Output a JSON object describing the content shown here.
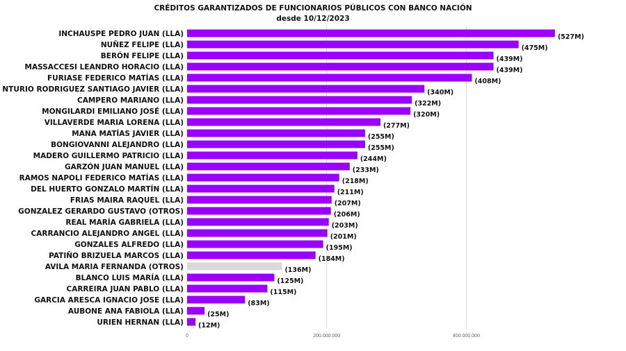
{
  "chart_data": {
    "type": "bar",
    "orientation": "horizontal",
    "title": "CRÉDITOS GARANTIZADOS DE FUNCIONARIOS PÚBLICOS CON BANCO NACIÓN",
    "subtitle": "desde 10/12/2023",
    "xlim": [
      0,
      580000000
    ],
    "xticks": [
      0,
      200000000,
      400000000
    ],
    "xtick_labels": [
      "0",
      "200.000.000",
      "400.000.000"
    ],
    "grid": "vertical",
    "legend": "none",
    "colors": {
      "default": "#9a00ff",
      "highlight": "#d9d9d9",
      "grid": "#d8d8d8"
    },
    "categories": [
      "INCHAUSPE PEDRO JUAN (LLA)",
      "NUÑEZ FELIPE (LLA)",
      "BERÓN FELIPE (LLA)",
      "MASSACCESI LEANDRO HORACIO (LLA)",
      "FURIASE FEDERICO MATÍAS (LLA)",
      "NTURIO RODRIGUEZ SANTIAGO JAVIER (LLA)",
      "CAMPERO MARIANO (LLA)",
      "MONGILARDI EMILIANO JOSÉ (LLA)",
      "VILLAVERDE MARIA LORENA (LLA)",
      "MANA MATÍAS JAVIER (LLA)",
      "BONGIOVANNI ALEJANDRO (LLA)",
      "MADERO GUILLERMO PATRICIO (LLA)",
      "GARZÓN JUAN MANUEL (LLA)",
      "RAMOS NAPOLI FEDERICO MATÍAS (LLA)",
      "DEL HUERTO GONZALO MARTÍN (LLA)",
      "FRIAS MAIRA RAQUEL (LLA)",
      "GONZALEZ GERARDO GUSTAVO (OTROS)",
      "REAL MARÍA GABRIELA (LLA)",
      "CARRANCIO ALEJANDRO ANGEL (LLA)",
      "GONZALES ALFREDO (LLA)",
      "PATIÑO BRIZUELA MARCOS (LLA)",
      "AVILA MARIA FERNANDA (OTROS)",
      "BLANCO LUIS MARÍA  (LLA)",
      "CARREIRA JUAN PABLO (LLA)",
      "GARCIA ARESCA IGNACIO JOSE (LLA)",
      "AUBONE ANA FABIOLA (LLA)",
      "URIEN HERNAN (LLA)"
    ],
    "values": [
      527000000,
      475000000,
      439000000,
      439000000,
      408000000,
      340000000,
      322000000,
      320000000,
      277000000,
      255000000,
      255000000,
      244000000,
      233000000,
      218000000,
      211000000,
      207000000,
      206000000,
      203000000,
      201000000,
      195000000,
      184000000,
      136000000,
      125000000,
      115000000,
      83000000,
      25000000,
      12000000
    ],
    "value_labels": [
      "(527M)",
      "(475M)",
      "(439M)",
      "(439M)",
      "(408M)",
      "(340M)",
      "(322M)",
      "(320M)",
      "(277M)",
      "(255M)",
      "(255M)",
      "(244M)",
      "(233M)",
      "(218M)",
      "(211M)",
      "(207M)",
      "(206M)",
      "(203M)",
      "(201M)",
      "(195M)",
      "(184M)",
      "(136M)",
      "(125M)",
      "(115M)",
      "(83M)",
      "(25M)",
      "(12M)"
    ],
    "highlighted": [
      21
    ]
  }
}
